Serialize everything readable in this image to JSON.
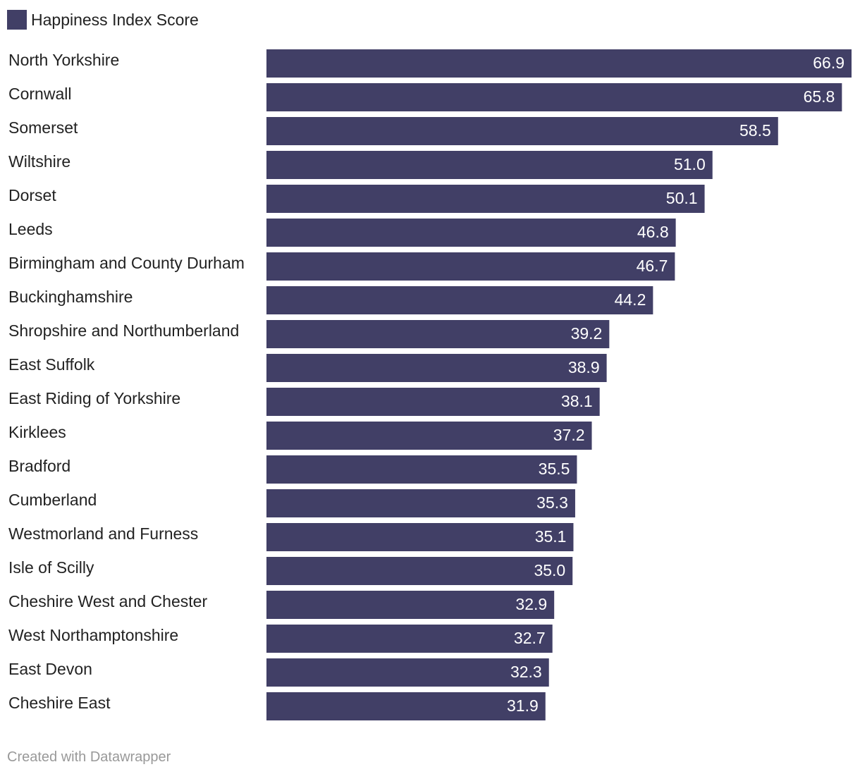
{
  "colors": {
    "bar": "#413f66",
    "text": "#222222",
    "value_text": "#ffffff",
    "footer_text": "#999999"
  },
  "legend": {
    "label": "Happiness Index Score"
  },
  "footer": {
    "credit": "Created with Datawrapper"
  },
  "chart_data": {
    "type": "bar",
    "orientation": "horizontal",
    "title": "",
    "xlabel": "",
    "ylabel": "",
    "xlim": [
      0,
      66.9
    ],
    "grid": false,
    "legend_position": "top-left",
    "series": [
      {
        "name": "Happiness Index Score",
        "values": [
          66.9,
          65.8,
          58.5,
          51.0,
          50.1,
          46.8,
          46.7,
          44.2,
          39.2,
          38.9,
          38.1,
          37.2,
          35.5,
          35.3,
          35.1,
          35.0,
          32.9,
          32.7,
          32.3,
          31.9
        ]
      }
    ],
    "categories": [
      "North Yorkshire",
      "Cornwall",
      "Somerset",
      "Wiltshire",
      "Dorset",
      "Leeds",
      "Birmingham and County Durham",
      "Buckinghamshire",
      "Shropshire and Northumberland",
      "East Suffolk",
      "East Riding of Yorkshire",
      "Kirklees",
      "Bradford",
      "Cumberland",
      "Westmorland and Furness",
      "Isle of Scilly",
      "Cheshire West and Chester",
      "West Northamptonshire",
      "East Devon",
      "Cheshire East"
    ],
    "value_labels": [
      "66.9",
      "65.8",
      "58.5",
      "51.0",
      "50.1",
      "46.8",
      "46.7",
      "44.2",
      "39.2",
      "38.9",
      "38.1",
      "37.2",
      "35.5",
      "35.3",
      "35.1",
      "35.0",
      "32.9",
      "32.7",
      "32.3",
      "31.9"
    ]
  }
}
